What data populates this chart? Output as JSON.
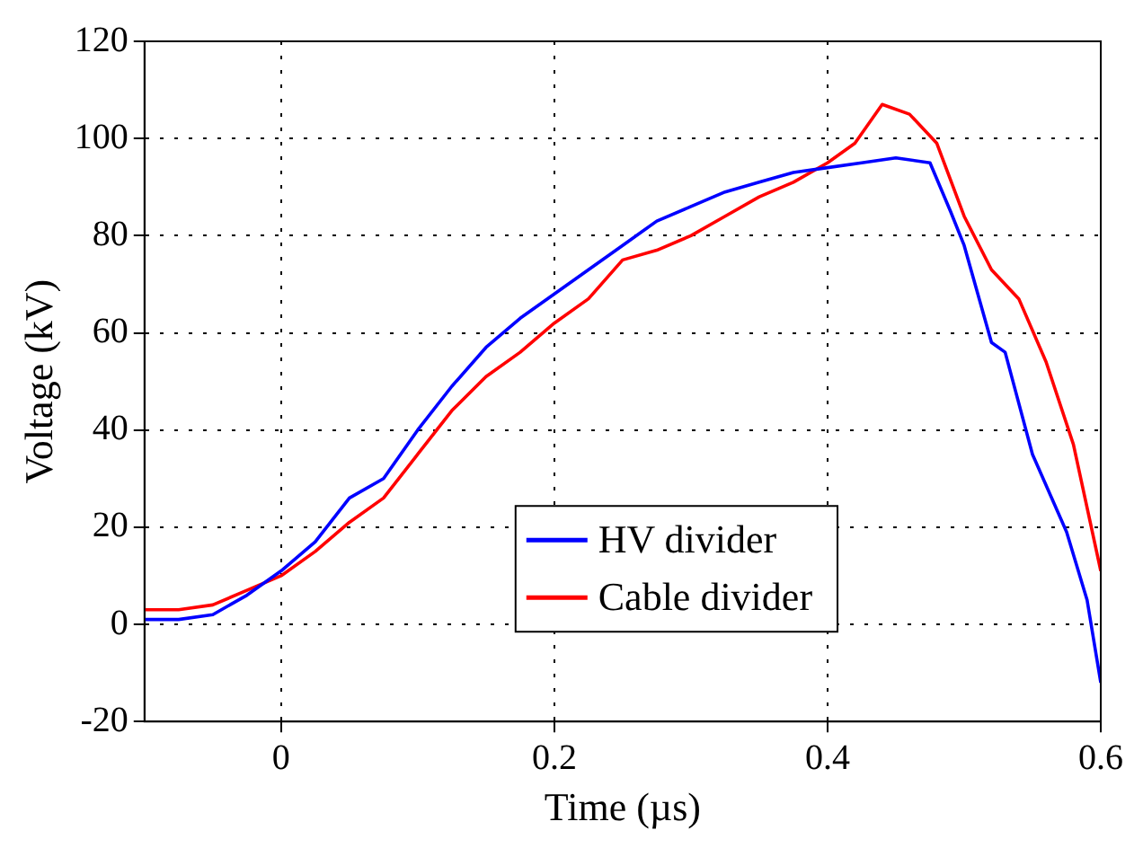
{
  "chart_data": {
    "type": "line",
    "xlabel": "Time (µs)",
    "ylabel": "Voltage (kV)",
    "xlim": [
      -0.1,
      0.6
    ],
    "xticks": [
      0,
      0.2,
      0.4,
      0.6
    ],
    "ylim": [
      -20,
      120
    ],
    "yticks": [
      -20,
      0,
      20,
      40,
      60,
      80,
      100,
      120
    ],
    "grid": true,
    "legend": "bottom",
    "marker": "none",
    "line_style": "solid",
    "series": [
      {
        "name": "HV divider",
        "color": "#0000ff",
        "x": [
          -0.1,
          -0.075,
          -0.05,
          -0.025,
          0,
          0.025,
          0.05,
          0.075,
          0.1,
          0.125,
          0.15,
          0.175,
          0.2,
          0.225,
          0.25,
          0.275,
          0.3,
          0.325,
          0.35,
          0.375,
          0.4,
          0.425,
          0.45,
          0.475,
          0.49,
          0.5,
          0.51,
          0.52,
          0.53,
          0.55,
          0.575,
          0.59,
          0.6
        ],
        "values": [
          1,
          1,
          2,
          6,
          11,
          17,
          26,
          30,
          40,
          49,
          57,
          63,
          68,
          73,
          78,
          83,
          86,
          89,
          91,
          93,
          94,
          95,
          96,
          95,
          85,
          78,
          68,
          58,
          56,
          35,
          19,
          5,
          -12
        ]
      },
      {
        "name": "Cable divider",
        "color": "#ff0000",
        "x": [
          -0.1,
          -0.075,
          -0.05,
          -0.025,
          0,
          0.025,
          0.05,
          0.075,
          0.1,
          0.125,
          0.15,
          0.175,
          0.2,
          0.225,
          0.25,
          0.275,
          0.3,
          0.325,
          0.35,
          0.375,
          0.4,
          0.42,
          0.44,
          0.46,
          0.48,
          0.5,
          0.52,
          0.54,
          0.56,
          0.58,
          0.6
        ],
        "values": [
          3,
          3,
          4,
          7,
          10,
          15,
          21,
          26,
          35,
          44,
          51,
          56,
          62,
          67,
          75,
          77,
          80,
          84,
          88,
          91,
          95,
          99,
          107,
          105,
          99,
          84,
          73,
          67,
          54,
          37,
          11
        ]
      }
    ]
  }
}
